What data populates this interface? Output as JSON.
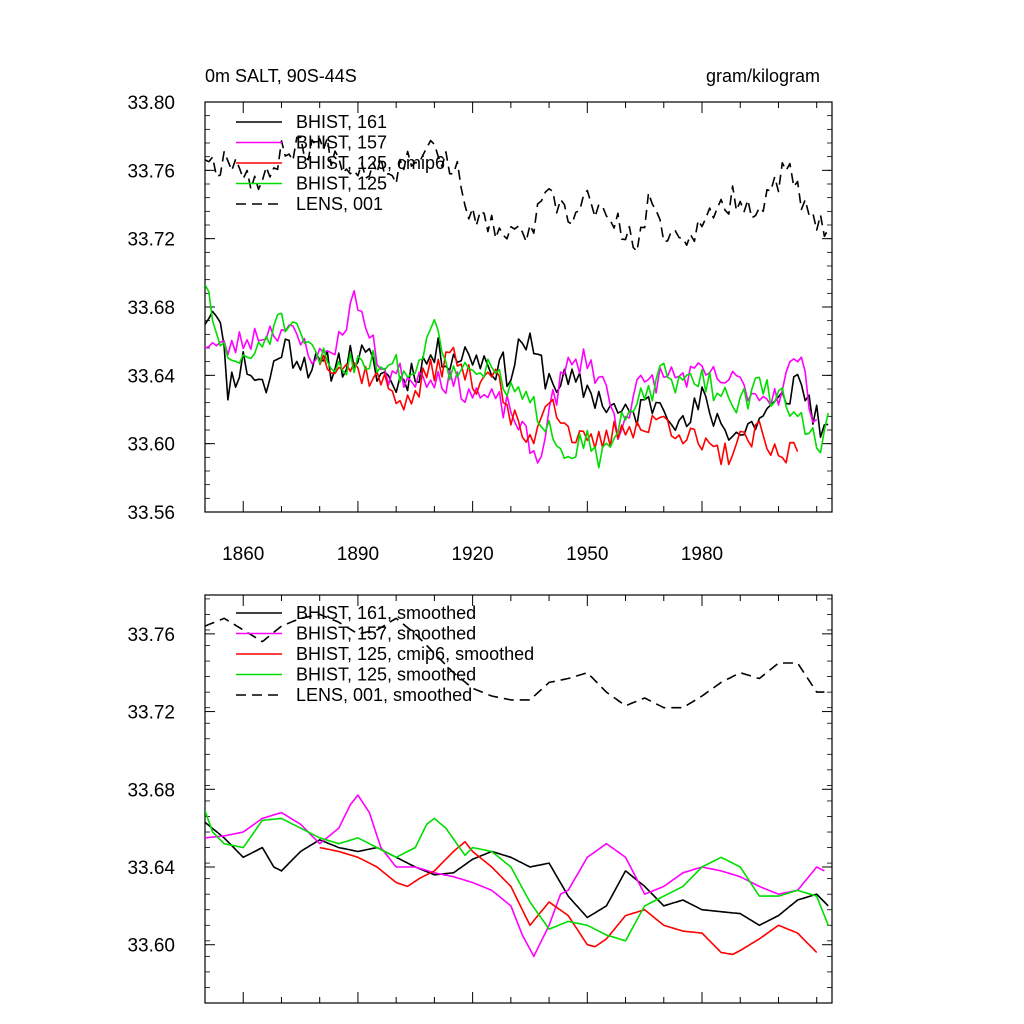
{
  "figure": {
    "title_left": "0m SALT, 90S-44S",
    "title_right": "gram/kilogram"
  },
  "chart_data": [
    {
      "type": "line",
      "title": "0m SALT, 90S-44S",
      "units": "gram/kilogram",
      "xlim": [
        1850,
        2014
      ],
      "ylim": [
        33.56,
        33.8
      ],
      "yticks": [
        33.56,
        33.6,
        33.64,
        33.68,
        33.72,
        33.76,
        33.8
      ],
      "ytick_labels": [
        "33.56",
        "33.60",
        "33.64",
        "33.68",
        "33.72",
        "33.76",
        "33.80"
      ],
      "xticks": [
        1860,
        1890,
        1920,
        1950,
        1980
      ],
      "xtick_labels": [
        "1860",
        "1890",
        "1920",
        "1950",
        "1980"
      ],
      "legend": "top-left",
      "series": [
        {
          "name": "BHIST, 161",
          "color": "#000000",
          "dash": "solid",
          "start_year": 1850,
          "key_x": [
            1850,
            1853,
            1856,
            1860,
            1866,
            1870,
            1880,
            1890,
            1900,
            1910,
            1920,
            1930,
            1933,
            1940,
            1950,
            1960,
            1970,
            1975,
            1980,
            1985,
            1990,
            1995,
            2000,
            2005,
            2013
          ],
          "key_y": [
            33.675,
            33.683,
            33.634,
            33.648,
            33.632,
            33.658,
            33.643,
            33.652,
            33.635,
            33.652,
            33.652,
            33.642,
            33.662,
            33.638,
            33.632,
            33.615,
            33.628,
            33.608,
            33.625,
            33.612,
            33.605,
            33.615,
            33.622,
            33.638,
            33.602
          ],
          "amp": 0.01,
          "seed": 11
        },
        {
          "name": "BHIST, 157",
          "color": "#ff00ff",
          "dash": "solid",
          "start_year": 1850,
          "key_x": [
            1850,
            1855,
            1860,
            1865,
            1870,
            1880,
            1885,
            1888,
            1890,
            1893,
            1898,
            1905,
            1910,
            1920,
            1930,
            1935,
            1937,
            1940,
            1945,
            1950,
            1955,
            1958,
            1963,
            1970,
            1980,
            1990,
            1995,
            2000,
            2005,
            2010
          ],
          "key_y": [
            33.66,
            33.655,
            33.66,
            33.665,
            33.668,
            33.65,
            33.66,
            33.68,
            33.685,
            33.66,
            33.64,
            33.64,
            33.64,
            33.63,
            33.62,
            33.598,
            33.588,
            33.62,
            33.645,
            33.65,
            33.632,
            33.608,
            33.632,
            33.64,
            33.64,
            33.635,
            33.628,
            33.63,
            33.652,
            33.612
          ],
          "amp": 0.008,
          "seed": 23
        },
        {
          "name": "BHIST, 125, cmip6",
          "color": "#ff0000",
          "dash": "solid",
          "start_year": 1880,
          "key_x": [
            1880,
            1885,
            1890,
            1895,
            1900,
            1903,
            1908,
            1915,
            1920,
            1925,
            1930,
            1935,
            1940,
            1945,
            1950,
            1955,
            1960,
            1965,
            1970,
            1980,
            1985,
            1990,
            1995,
            2000,
            2005
          ],
          "key_y": [
            33.65,
            33.648,
            33.643,
            33.638,
            33.63,
            33.622,
            33.64,
            33.652,
            33.635,
            33.645,
            33.615,
            33.6,
            33.63,
            33.608,
            33.598,
            33.602,
            33.612,
            33.608,
            33.615,
            33.598,
            33.592,
            33.6,
            33.605,
            33.59,
            33.6
          ],
          "amp": 0.008,
          "seed": 37
        },
        {
          "name": "BHIST, 125",
          "color": "#00dd00",
          "dash": "solid",
          "start_year": 1850,
          "key_x": [
            1850,
            1852,
            1855,
            1860,
            1865,
            1870,
            1875,
            1880,
            1885,
            1890,
            1895,
            1900,
            1905,
            1908,
            1910,
            1913,
            1915,
            1920,
            1925,
            1930,
            1935,
            1940,
            1945,
            1950,
            1954,
            1958,
            1965,
            1970,
            1975,
            1980,
            1985,
            1990,
            1995,
            2000,
            2005,
            2010,
            2013
          ],
          "key_y": [
            33.697,
            33.668,
            33.655,
            33.645,
            33.66,
            33.672,
            33.66,
            33.65,
            33.645,
            33.65,
            33.648,
            33.645,
            33.64,
            33.66,
            33.678,
            33.65,
            33.64,
            33.648,
            33.64,
            33.632,
            33.622,
            33.612,
            33.595,
            33.605,
            33.59,
            33.608,
            33.628,
            33.64,
            33.632,
            33.64,
            33.628,
            33.625,
            33.632,
            33.628,
            33.618,
            33.598,
            33.612
          ],
          "amp": 0.008,
          "seed": 51
        },
        {
          "name": "LENS, 001",
          "color": "#000000",
          "dash": "dashed",
          "start_year": 1850,
          "key_x": [
            1850,
            1853,
            1856,
            1860,
            1865,
            1870,
            1880,
            1885,
            1890,
            1895,
            1900,
            1905,
            1910,
            1913,
            1917,
            1920,
            1925,
            1930,
            1935,
            1940,
            1945,
            1950,
            1955,
            1960,
            1963,
            1966,
            1970,
            1975,
            1980,
            1985,
            1990,
            1995,
            2000,
            2003,
            2007,
            2010,
            2013
          ],
          "key_y": [
            33.77,
            33.762,
            33.77,
            33.76,
            33.75,
            33.772,
            33.775,
            33.768,
            33.76,
            33.765,
            33.76,
            33.77,
            33.775,
            33.765,
            33.755,
            33.73,
            33.728,
            33.72,
            33.725,
            33.745,
            33.73,
            33.745,
            33.73,
            33.725,
            33.712,
            33.74,
            33.725,
            33.722,
            33.725,
            33.74,
            33.745,
            33.735,
            33.755,
            33.76,
            33.735,
            33.725,
            33.73
          ],
          "amp": 0.008,
          "seed": 67
        }
      ]
    },
    {
      "type": "line",
      "xlim": [
        1850,
        2014
      ],
      "ylim": [
        33.57,
        33.78
      ],
      "yticks": [
        33.6,
        33.64,
        33.68,
        33.72,
        33.76
      ],
      "ytick_labels": [
        "33.60",
        "33.64",
        "33.68",
        "33.72",
        "33.76"
      ],
      "xticks": [
        1860,
        1890,
        1920,
        1950,
        1980
      ],
      "xtick_labels": [],
      "legend": "top-left",
      "series": [
        {
          "name": "BHIST, 161, smoothed",
          "color": "#000000",
          "dash": "solid",
          "start_year": 1850,
          "key_x": [
            1850,
            1855,
            1860,
            1865,
            1868,
            1870,
            1875,
            1880,
            1885,
            1890,
            1895,
            1900,
            1905,
            1910,
            1915,
            1920,
            1925,
            1930,
            1935,
            1940,
            1945,
            1950,
            1955,
            1960,
            1965,
            1970,
            1975,
            1980,
            1985,
            1990,
            1995,
            2000,
            2005,
            2010,
            2013
          ],
          "key_y": [
            33.663,
            33.655,
            33.645,
            33.65,
            33.64,
            33.638,
            33.648,
            33.654,
            33.65,
            33.648,
            33.65,
            33.645,
            33.64,
            33.636,
            33.637,
            33.644,
            33.648,
            33.645,
            33.64,
            33.642,
            33.625,
            33.614,
            33.62,
            33.638,
            33.63,
            33.62,
            33.623,
            33.618,
            33.617,
            33.616,
            33.61,
            33.615,
            33.623,
            33.626,
            33.62
          ]
        },
        {
          "name": "BHIST, 157, smoothed",
          "color": "#ff00ff",
          "dash": "solid",
          "start_year": 1850,
          "key_x": [
            1850,
            1855,
            1860,
            1865,
            1870,
            1875,
            1880,
            1885,
            1888,
            1890,
            1893,
            1896,
            1900,
            1905,
            1910,
            1915,
            1920,
            1925,
            1930,
            1933,
            1936,
            1940,
            1943,
            1945,
            1950,
            1955,
            1960,
            1965,
            1970,
            1975,
            1980,
            1985,
            1990,
            1995,
            2000,
            2005,
            2010,
            2012
          ],
          "key_y": [
            33.655,
            33.656,
            33.658,
            33.665,
            33.668,
            33.662,
            33.652,
            33.66,
            33.672,
            33.677,
            33.668,
            33.65,
            33.64,
            33.64,
            33.637,
            33.635,
            33.632,
            33.628,
            33.62,
            33.605,
            33.594,
            33.61,
            33.626,
            33.628,
            33.645,
            33.652,
            33.645,
            33.626,
            33.63,
            33.637,
            33.64,
            33.638,
            33.635,
            33.63,
            33.626,
            33.628,
            33.64,
            33.638
          ]
        },
        {
          "name": "BHIST, 125, cmip6, smoothed",
          "color": "#ff0000",
          "dash": "solid",
          "start_year": 1880,
          "key_x": [
            1880,
            1885,
            1890,
            1895,
            1900,
            1903,
            1906,
            1910,
            1915,
            1918,
            1920,
            1925,
            1930,
            1935,
            1940,
            1945,
            1950,
            1952,
            1955,
            1960,
            1965,
            1970,
            1975,
            1980,
            1985,
            1988,
            1990,
            1995,
            2000,
            2005,
            2010
          ],
          "key_y": [
            33.65,
            33.648,
            33.645,
            33.64,
            33.632,
            33.63,
            33.634,
            33.638,
            33.648,
            33.653,
            33.648,
            33.64,
            33.63,
            33.61,
            33.622,
            33.615,
            33.6,
            33.599,
            33.603,
            33.615,
            33.618,
            33.61,
            33.607,
            33.606,
            33.596,
            33.595,
            33.597,
            33.603,
            33.61,
            33.606,
            33.596
          ]
        },
        {
          "name": "BHIST, 125, smoothed",
          "color": "#00dd00",
          "dash": "solid",
          "start_year": 1850,
          "key_x": [
            1850,
            1852,
            1855,
            1860,
            1865,
            1870,
            1875,
            1880,
            1885,
            1890,
            1895,
            1900,
            1905,
            1908,
            1910,
            1913,
            1918,
            1920,
            1925,
            1930,
            1935,
            1940,
            1945,
            1950,
            1955,
            1960,
            1965,
            1970,
            1975,
            1980,
            1985,
            1990,
            1995,
            2000,
            2005,
            2010,
            2013
          ],
          "key_y": [
            33.669,
            33.658,
            33.652,
            33.65,
            33.664,
            33.665,
            33.66,
            33.655,
            33.652,
            33.655,
            33.65,
            33.645,
            33.65,
            33.662,
            33.665,
            33.66,
            33.646,
            33.65,
            33.648,
            33.64,
            33.622,
            33.608,
            33.612,
            33.61,
            33.605,
            33.602,
            33.62,
            33.625,
            33.63,
            33.64,
            33.645,
            33.64,
            33.625,
            33.625,
            33.628,
            33.625,
            33.61
          ]
        },
        {
          "name": "LENS, 001, smoothed",
          "color": "#000000",
          "dash": "dashed",
          "start_year": 1850,
          "key_x": [
            1850,
            1855,
            1860,
            1865,
            1870,
            1875,
            1880,
            1885,
            1890,
            1895,
            1900,
            1905,
            1910,
            1915,
            1920,
            1925,
            1930,
            1935,
            1940,
            1945,
            1950,
            1955,
            1960,
            1965,
            1970,
            1975,
            1980,
            1985,
            1990,
            1995,
            2000,
            2005,
            2010,
            2012
          ],
          "key_y": [
            33.764,
            33.768,
            33.762,
            33.756,
            33.764,
            33.768,
            33.77,
            33.766,
            33.76,
            33.762,
            33.768,
            33.76,
            33.75,
            33.74,
            33.732,
            33.728,
            33.726,
            33.726,
            33.735,
            33.737,
            33.74,
            33.73,
            33.723,
            33.727,
            33.722,
            33.722,
            33.728,
            33.735,
            33.74,
            33.737,
            33.745,
            33.745,
            33.73,
            33.73
          ]
        }
      ]
    }
  ]
}
